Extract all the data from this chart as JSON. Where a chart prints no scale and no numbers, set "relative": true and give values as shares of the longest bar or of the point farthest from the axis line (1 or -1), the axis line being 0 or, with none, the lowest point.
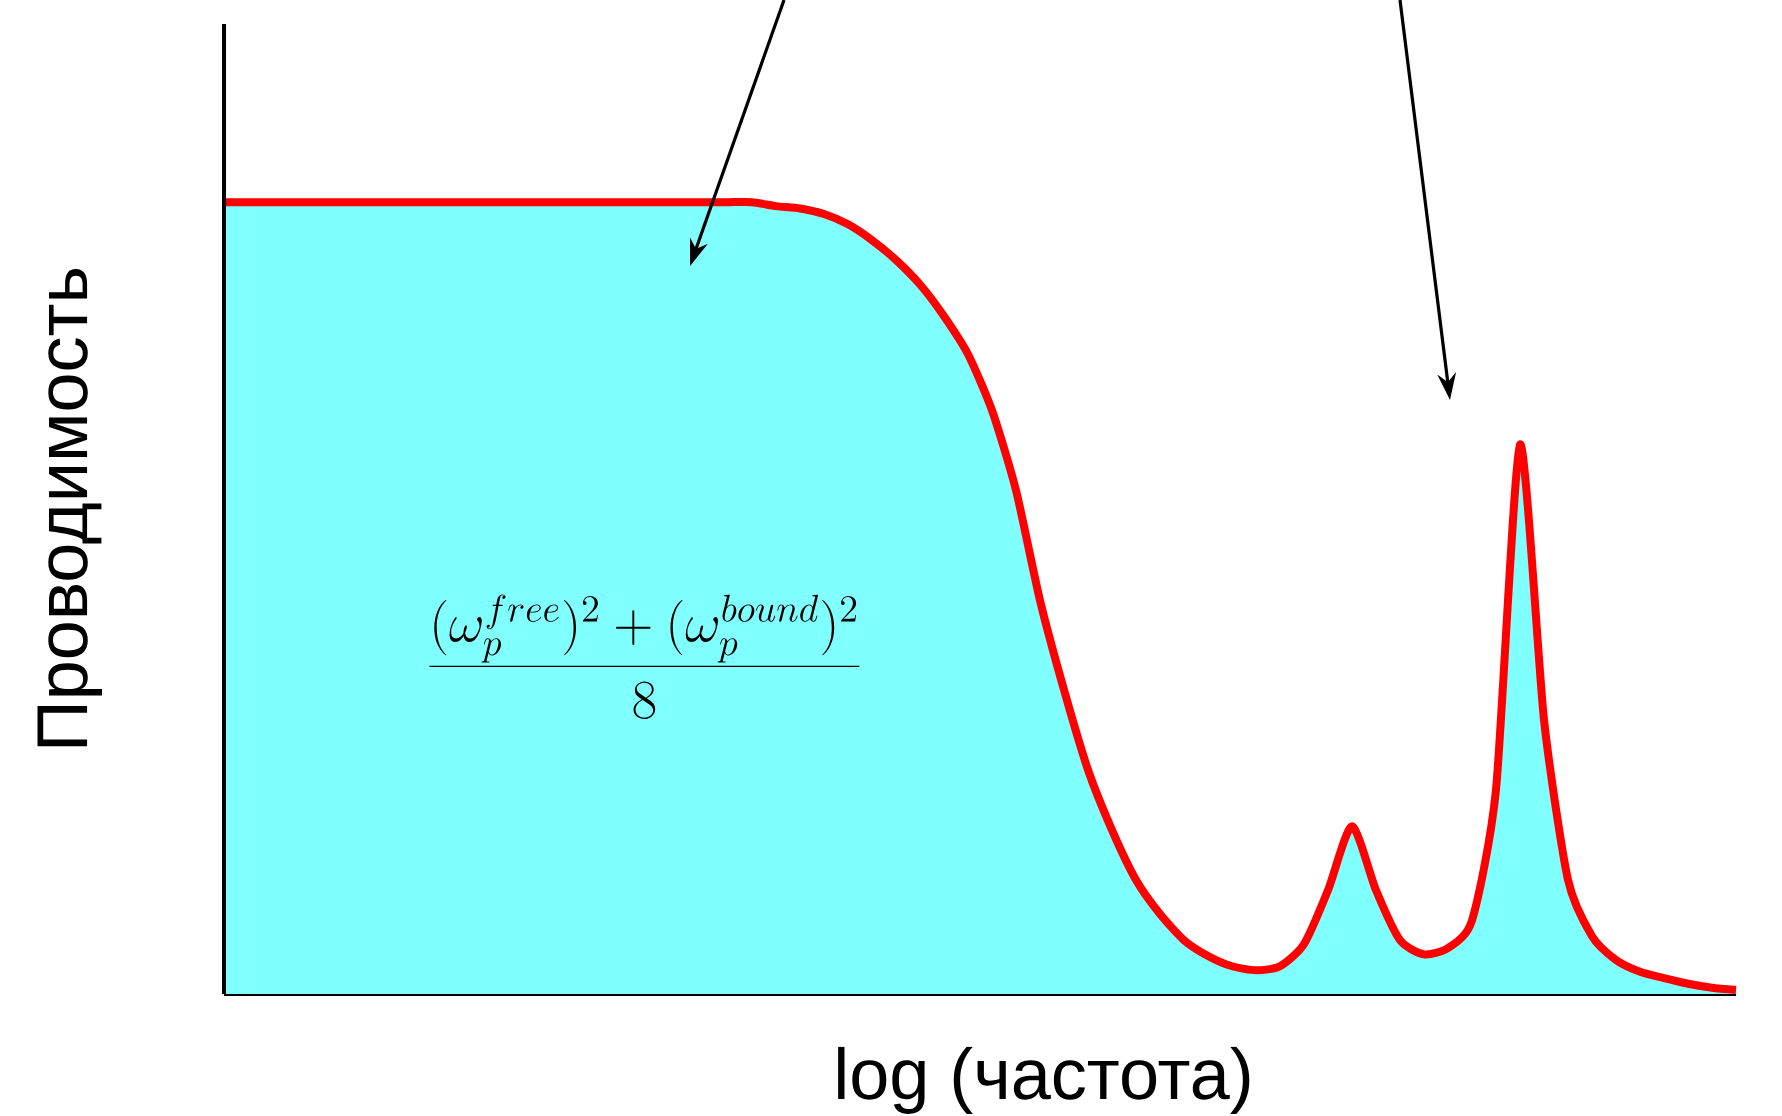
{
  "chart_data": {
    "type": "area",
    "relative": true,
    "xlabel": "log (частота)",
    "ylabel": "Проводимость",
    "annotations": [
      "\\frac{(\\omega_p^{free})^2+(\\omega_p^{bound})^2}{8}"
    ],
    "categories": [
      null,
      null,
      null,
      null,
      null,
      null,
      null,
      null,
      null,
      null,
      null,
      null,
      null,
      null,
      null,
      null,
      null,
      null,
      null,
      null,
      null,
      null,
      null,
      null,
      null,
      null,
      null,
      null,
      null,
      null,
      null,
      null,
      null,
      null,
      null,
      null,
      null,
      null,
      null,
      null,
      null,
      null,
      null,
      null,
      null,
      null,
      null,
      null,
      null,
      null,
      null,
      null,
      null,
      null,
      null,
      null,
      null,
      null,
      null,
      null,
      null,
      null,
      null,
      null
    ],
    "series": [
      {
        "color": "#80ffff",
        "values": [
          1,
          1,
          1,
          1,
          1,
          1,
          1,
          1,
          1,
          1,
          1,
          1,
          1,
          1,
          1,
          1,
          1,
          1,
          1,
          1,
          1,
          1,
          1,
          0.995,
          0.992,
          0.985,
          0.972,
          0.952,
          0.927,
          0.896,
          0.856,
          0.808,
          0.737,
          0.636,
          0.497,
          0.384,
          0.283,
          0.207,
          0.144,
          0.101,
          0.068,
          0.048,
          0.035,
          0.03,
          0.035,
          0.063,
          0.131,
          0.212,
          0.131,
          0.068,
          0.05,
          0.058,
          0.093,
          0.258,
          0.694,
          0.346,
          0.144,
          0.073,
          0.043,
          0.028,
          0.02,
          0.013,
          0.008,
          0.005
        ]
      },
      {
        "type": "line",
        "color": "#ff0000",
        "values": [
          1,
          1,
          1,
          1,
          1,
          1,
          1,
          1,
          1,
          1,
          1,
          1,
          1,
          1,
          1,
          1,
          1,
          1,
          1,
          1,
          1,
          1,
          1,
          0.995,
          0.992,
          0.985,
          0.972,
          0.952,
          0.927,
          0.896,
          0.856,
          0.808,
          0.737,
          0.636,
          0.497,
          0.384,
          0.283,
          0.207,
          0.144,
          0.101,
          0.068,
          0.048,
          0.035,
          0.03,
          0.035,
          0.063,
          0.131,
          0.212,
          0.131,
          0.068,
          0.05,
          0.058,
          0.093,
          0.258,
          0.694,
          0.346,
          0.144,
          0.073,
          0.043,
          0.028,
          0.02,
          0.013,
          0.008,
          0.005
        ]
      }
    ]
  }
}
